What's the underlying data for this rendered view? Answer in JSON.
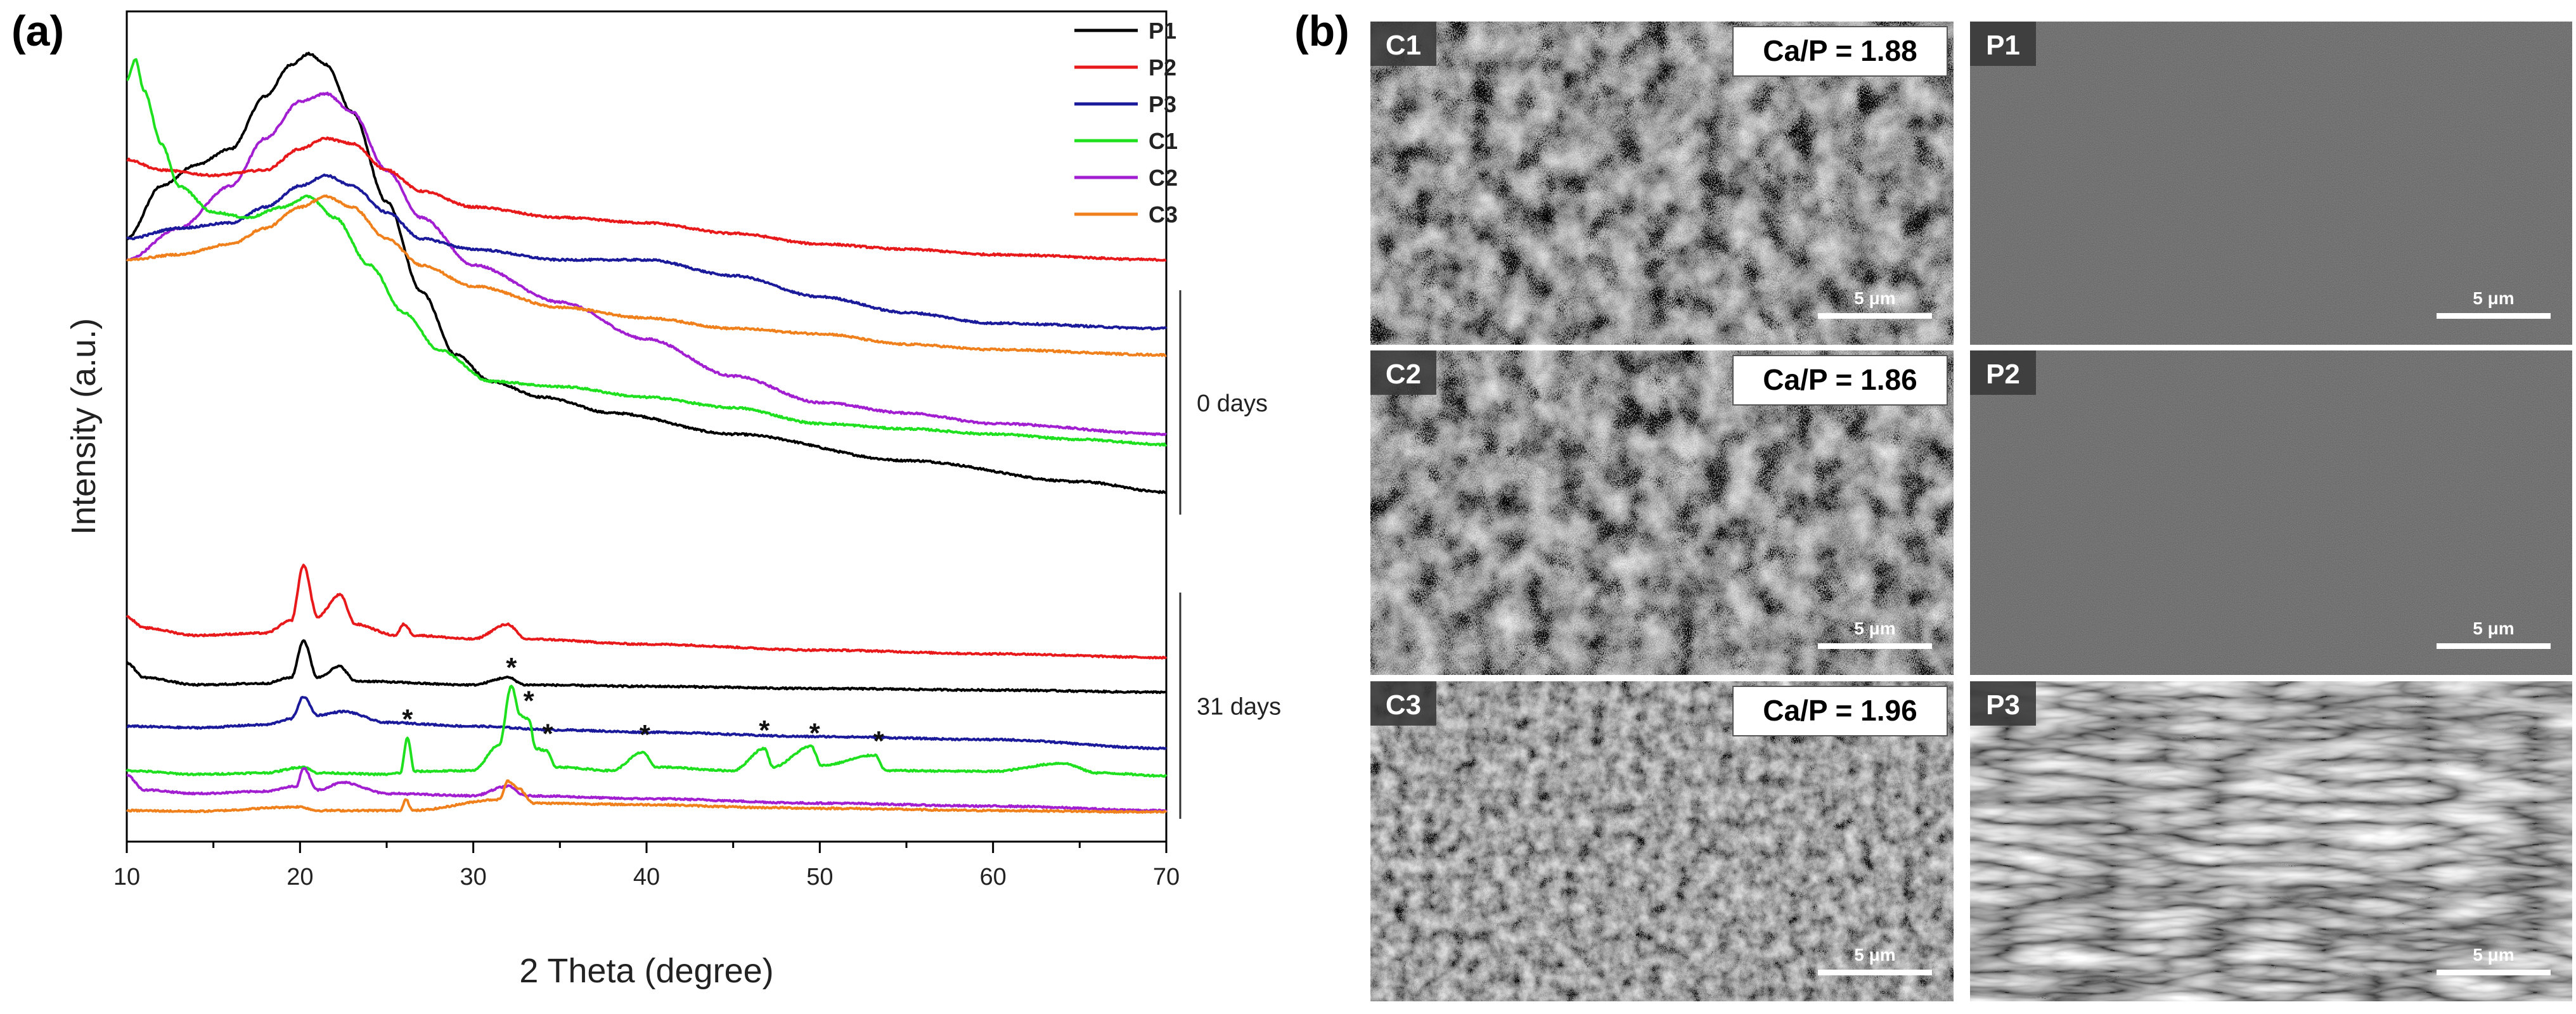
{
  "panels": {
    "a": {
      "letter": "(a)"
    },
    "b": {
      "letter": "(b)"
    }
  },
  "chart_data": {
    "type": "line",
    "title": "",
    "xlabel": "2 Theta (degree)",
    "ylabel": "Intensity (a.u.)",
    "xlim": [
      10,
      70
    ],
    "xticks": [
      "10",
      "20",
      "30",
      "40",
      "50",
      "60",
      "70"
    ],
    "yticks": "none",
    "grid": false,
    "legend": {
      "placement": "top-right",
      "entries": [
        {
          "name": "P1",
          "color": "#000000"
        },
        {
          "name": "P2",
          "color": "#e8191b"
        },
        {
          "name": "P3",
          "color": "#1a1a9a"
        },
        {
          "name": "C1",
          "color": "#1ee01e"
        },
        {
          "name": "C2",
          "color": "#a21fd1"
        },
        {
          "name": "C3",
          "color": "#f0801c"
        }
      ]
    },
    "groups": [
      {
        "label": "0 days",
        "series_order": [
          "P1",
          "C2",
          "P2",
          "P3",
          "C1",
          "C3"
        ]
      },
      {
        "label": "31 days",
        "series_order": [
          "P2",
          "P1",
          "P3",
          "C1",
          "C2",
          "C3"
        ]
      }
    ],
    "stacking_note_units": "arbitrary",
    "series": [
      {
        "name": "P1",
        "group": "0 days",
        "color": "#000000",
        "points": [
          [
            10,
            62
          ],
          [
            12,
            72
          ],
          [
            14,
            76
          ],
          [
            16,
            79
          ],
          [
            18,
            89
          ],
          [
            19.5,
            95
          ],
          [
            20.5,
            97
          ],
          [
            21.5,
            95
          ],
          [
            23,
            86
          ],
          [
            25,
            69
          ],
          [
            27,
            52
          ],
          [
            29,
            40
          ],
          [
            31,
            35
          ],
          [
            34,
            32
          ],
          [
            38,
            29
          ],
          [
            45,
            25
          ],
          [
            55,
            20
          ],
          [
            65,
            16
          ],
          [
            70,
            14
          ]
        ]
      },
      {
        "name": "C2",
        "group": "0 days",
        "color": "#a21fd1",
        "points": [
          [
            10,
            58
          ],
          [
            13,
            64
          ],
          [
            16,
            72
          ],
          [
            18,
            81
          ],
          [
            20,
            88
          ],
          [
            21.5,
            89.5
          ],
          [
            23,
            86
          ],
          [
            25,
            75
          ],
          [
            27,
            66
          ],
          [
            30,
            57
          ],
          [
            35,
            50
          ],
          [
            40,
            43
          ],
          [
            45,
            36
          ],
          [
            50,
            31
          ],
          [
            55,
            29
          ],
          [
            60,
            27
          ],
          [
            70,
            25
          ]
        ]
      },
      {
        "name": "P2",
        "group": "0 days",
        "color": "#e8191b",
        "points": [
          [
            10,
            77
          ],
          [
            12,
            75
          ],
          [
            15,
            74
          ],
          [
            18,
            75
          ],
          [
            20,
            79
          ],
          [
            21.5,
            81
          ],
          [
            23,
            80
          ],
          [
            25,
            75
          ],
          [
            27,
            71
          ],
          [
            30,
            68
          ],
          [
            35,
            66
          ],
          [
            40,
            65
          ],
          [
            45,
            63
          ],
          [
            50,
            61
          ],
          [
            55,
            60
          ],
          [
            60,
            59
          ],
          [
            70,
            58
          ]
        ]
      },
      {
        "name": "P3",
        "group": "0 days",
        "color": "#1a1a9a",
        "points": [
          [
            10,
            62
          ],
          [
            13,
            64
          ],
          [
            16,
            65
          ],
          [
            18,
            68
          ],
          [
            20,
            72
          ],
          [
            21.5,
            74
          ],
          [
            23,
            72
          ],
          [
            25,
            67
          ],
          [
            27,
            62
          ],
          [
            30,
            60
          ],
          [
            35,
            58
          ],
          [
            40,
            58
          ],
          [
            45,
            55
          ],
          [
            50,
            51
          ],
          [
            55,
            48
          ],
          [
            60,
            46
          ],
          [
            70,
            45
          ]
        ]
      },
      {
        "name": "C1",
        "group": "0 days",
        "color": "#1ee01e",
        "points": [
          [
            10,
            92
          ],
          [
            10.5,
            96
          ],
          [
            11,
            90
          ],
          [
            12,
            80
          ],
          [
            13,
            72
          ],
          [
            15,
            67
          ],
          [
            17,
            66
          ],
          [
            19,
            68
          ],
          [
            20.5,
            70
          ],
          [
            22,
            66
          ],
          [
            24,
            57
          ],
          [
            26,
            48
          ],
          [
            28,
            41
          ],
          [
            31,
            35
          ],
          [
            35,
            34
          ],
          [
            40,
            32
          ],
          [
            45,
            30
          ],
          [
            50,
            27
          ],
          [
            55,
            26
          ],
          [
            60,
            25
          ],
          [
            65,
            24
          ],
          [
            70,
            23
          ]
        ]
      },
      {
        "name": "C3",
        "group": "0 days",
        "color": "#f0801c",
        "points": [
          [
            10,
            58
          ],
          [
            13,
            59
          ],
          [
            16,
            61
          ],
          [
            18,
            64
          ],
          [
            20,
            68
          ],
          [
            21.5,
            70
          ],
          [
            23,
            68
          ],
          [
            25,
            62
          ],
          [
            27,
            57
          ],
          [
            30,
            53
          ],
          [
            35,
            49
          ],
          [
            40,
            47
          ],
          [
            45,
            45
          ],
          [
            50,
            44
          ],
          [
            55,
            42
          ],
          [
            60,
            41
          ],
          [
            70,
            40
          ]
        ]
      },
      {
        "name": "P2",
        "group": "31 days",
        "color": "#e8191b",
        "points": [
          [
            10,
            9
          ],
          [
            11,
            7.5
          ],
          [
            14,
            6.5
          ],
          [
            18,
            6.8
          ],
          [
            19.5,
            8.5
          ],
          [
            20.2,
            16
          ],
          [
            21,
            9
          ],
          [
            22.3,
            12
          ],
          [
            23.2,
            8
          ],
          [
            25.5,
            6.5
          ],
          [
            26,
            8
          ],
          [
            26.6,
            6.5
          ],
          [
            30,
            6
          ],
          [
            32,
            8
          ],
          [
            33,
            6
          ],
          [
            40,
            5.3
          ],
          [
            50,
            4.5
          ],
          [
            60,
            4
          ],
          [
            70,
            3.5
          ]
        ]
      },
      {
        "name": "P1",
        "group": "31 days",
        "color": "#000000",
        "points": [
          [
            10,
            6
          ],
          [
            11,
            4
          ],
          [
            14,
            3
          ],
          [
            18,
            3.2
          ],
          [
            19.5,
            4
          ],
          [
            20.2,
            9
          ],
          [
            21,
            4
          ],
          [
            22.3,
            5.5
          ],
          [
            23.2,
            3.5
          ],
          [
            30,
            3
          ],
          [
            32,
            4
          ],
          [
            33,
            3
          ],
          [
            40,
            2.8
          ],
          [
            50,
            2.5
          ],
          [
            60,
            2.3
          ],
          [
            70,
            2
          ]
        ]
      },
      {
        "name": "P3",
        "group": "31 days",
        "color": "#1a1a9a",
        "points": [
          [
            10,
            2
          ],
          [
            14,
            1.8
          ],
          [
            18,
            2.2
          ],
          [
            19.5,
            3
          ],
          [
            20.2,
            6
          ],
          [
            21,
            3.5
          ],
          [
            22.5,
            4
          ],
          [
            25,
            2.5
          ],
          [
            30,
            2
          ],
          [
            35,
            1.5
          ],
          [
            40,
            1.2
          ],
          [
            50,
            0.6
          ],
          [
            60,
            0.2
          ],
          [
            70,
            -1
          ]
        ]
      },
      {
        "name": "C1",
        "group": "31 days",
        "color": "#1ee01e",
        "points": [
          [
            10,
            1.5
          ],
          [
            14,
            1
          ],
          [
            18,
            1.2
          ],
          [
            20.2,
            2
          ],
          [
            21,
            1.2
          ],
          [
            25,
            1
          ],
          [
            25.8,
            1.2
          ],
          [
            26.2,
            6
          ],
          [
            26.6,
            1.4
          ],
          [
            30,
            1.5
          ],
          [
            31.5,
            5
          ],
          [
            32.2,
            13
          ],
          [
            32.7,
            9
          ],
          [
            33.2,
            8.5
          ],
          [
            33.6,
            4.5
          ],
          [
            34.2,
            4.2
          ],
          [
            34.8,
            2
          ],
          [
            38,
            1.5
          ],
          [
            39.8,
            4
          ],
          [
            40.5,
            2
          ],
          [
            45,
            1.5
          ],
          [
            46.8,
            4.5
          ],
          [
            47.3,
            2
          ],
          [
            49.5,
            4.8
          ],
          [
            50.1,
            2.2
          ],
          [
            53.2,
            3.6
          ],
          [
            53.8,
            1.5
          ],
          [
            60,
            1.4
          ],
          [
            64,
            2.5
          ],
          [
            66,
            1.2
          ],
          [
            70,
            0.8
          ]
        ]
      },
      {
        "name": "C2",
        "group": "31 days",
        "color": "#a21fd1",
        "points": [
          [
            10,
            4
          ],
          [
            11,
            2
          ],
          [
            14,
            1.5
          ],
          [
            18,
            1.8
          ],
          [
            19.8,
            2.5
          ],
          [
            20.2,
            5
          ],
          [
            21,
            2
          ],
          [
            22.5,
            3
          ],
          [
            25,
            1.5
          ],
          [
            30,
            1.2
          ],
          [
            32,
            2.5
          ],
          [
            33,
            1.2
          ],
          [
            40,
            0.8
          ],
          [
            50,
            0.2
          ],
          [
            60,
            -0.2
          ],
          [
            70,
            -0.8
          ]
        ]
      },
      {
        "name": "C3",
        "group": "31 days",
        "color": "#f0801c",
        "points": [
          [
            10,
            1
          ],
          [
            14,
            0.9
          ],
          [
            20,
            1.5
          ],
          [
            21,
            1
          ],
          [
            25.8,
            1
          ],
          [
            26.1,
            2.6
          ],
          [
            26.5,
            1
          ],
          [
            31.5,
            2.5
          ],
          [
            32,
            5
          ],
          [
            32.6,
            4
          ],
          [
            33.5,
            2
          ],
          [
            40,
            1.8
          ],
          [
            47,
            1.4
          ],
          [
            50,
            1.3
          ],
          [
            60,
            1
          ],
          [
            70,
            0.8
          ]
        ]
      }
    ],
    "annotations": [
      {
        "text": "*",
        "x": 26.2,
        "series": "C1",
        "group": "31 days"
      },
      {
        "text": "*",
        "x": 32.2,
        "series": "C1",
        "group": "31 days"
      },
      {
        "text": "*",
        "x": 33.2,
        "series": "C1",
        "group": "31 days"
      },
      {
        "text": "*",
        "x": 34.3,
        "series": "C1",
        "group": "31 days"
      },
      {
        "text": "*",
        "x": 39.9,
        "series": "C1",
        "group": "31 days"
      },
      {
        "text": "*",
        "x": 46.8,
        "series": "C1",
        "group": "31 days"
      },
      {
        "text": "*",
        "x": 49.7,
        "series": "C1",
        "group": "31 days"
      },
      {
        "text": "*",
        "x": 53.4,
        "series": "C1",
        "group": "31 days"
      }
    ]
  },
  "micrographs": [
    {
      "id": "C1",
      "ratio": "Ca/P = 1.88",
      "scale": "5 μm",
      "texture": "flower"
    },
    {
      "id": "P1",
      "ratio": "",
      "scale": "5 μm",
      "texture": "smooth"
    },
    {
      "id": "C2",
      "ratio": "Ca/P = 1.86",
      "scale": "5 μm",
      "texture": "flower"
    },
    {
      "id": "P2",
      "ratio": "",
      "scale": "5 μm",
      "texture": "smooth"
    },
    {
      "id": "C3",
      "ratio": "Ca/P = 1.96",
      "scale": "5 μm",
      "texture": "rough"
    },
    {
      "id": "P3",
      "ratio": "",
      "scale": "5 μm",
      "texture": "wrinkled"
    }
  ]
}
